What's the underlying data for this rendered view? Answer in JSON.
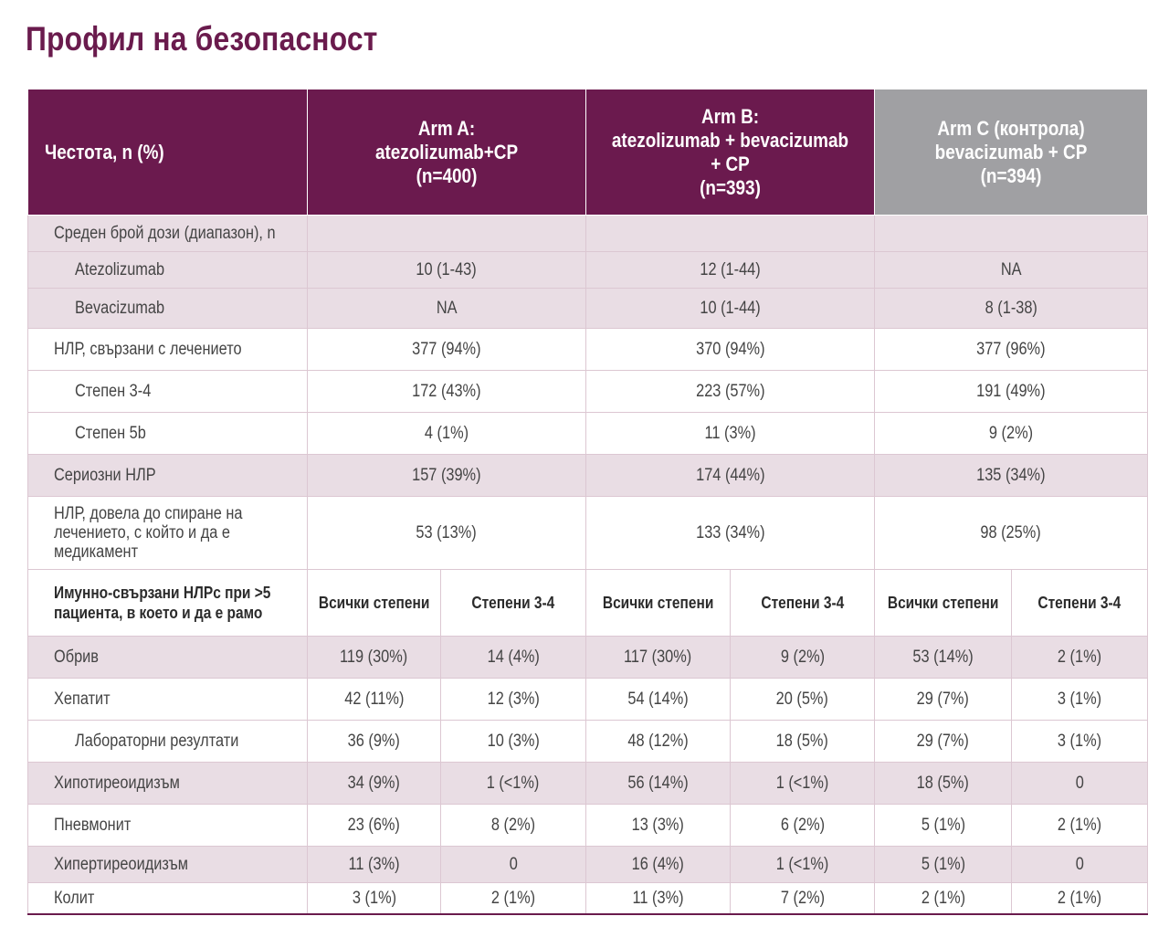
{
  "page_title": "Профил на безопасност",
  "header": {
    "label": "Честота, n (%)",
    "arms": [
      {
        "lines": [
          "Arm A:",
          "atezolizumab+CP",
          "(n=400)"
        ]
      },
      {
        "lines": [
          "Arm B:",
          "atezolizumab + bevacizumab",
          "+ CP",
          "(n=393)"
        ]
      },
      {
        "lines": [
          "Arm C (контрола)",
          "bevacizumab + CP",
          "(n=394)"
        ]
      }
    ]
  },
  "rows_top": [
    {
      "label": "Среден брой дози (диапазон), n",
      "indent": false,
      "shade": "pink",
      "a": "",
      "b": "",
      "c": ""
    },
    {
      "label": "Atezolizumab",
      "indent": true,
      "shade": "pink",
      "a": "10 (1-43)",
      "b": "12 (1-44)",
      "c": "NA"
    },
    {
      "label": "Bevacizumab",
      "indent": true,
      "shade": "pink",
      "a": "NA",
      "b": "10 (1-44)",
      "c": "8 (1-38)"
    },
    {
      "label": "НЛР, свързани с лечението",
      "indent": false,
      "shade": "white",
      "a": "377 (94%)",
      "b": "370 (94%)",
      "c": "377 (96%)"
    },
    {
      "label": "Степен 3-4",
      "indent": true,
      "shade": "white",
      "a": "172 (43%)",
      "b": "223 (57%)",
      "c": "191 (49%)"
    },
    {
      "label": "Степен 5b",
      "indent": true,
      "shade": "white",
      "a": "4 (1%)",
      "b": "11 (3%)",
      "c": "9 (2%)"
    },
    {
      "label": "Сериозни НЛР",
      "indent": false,
      "shade": "pink",
      "a": "157 (39%)",
      "b": "174 (44%)",
      "c": "135 (34%)"
    },
    {
      "label": "НЛР, довела до спиране на\nлечението, с който и да е\nмедикамент",
      "indent": false,
      "shade": "white",
      "a": "53 (13%)",
      "b": "133 (34%)",
      "c": "98 (25%)"
    }
  ],
  "subheader": {
    "label": "Имунно-свързани НЛРс при >5\nпациента, в което и да е рамо",
    "all_grades": "Всички степени",
    "grade34": "Степени 3-4"
  },
  "rows_immune": [
    {
      "label": "Обрив",
      "indent": false,
      "shade": "pink",
      "v": [
        "119 (30%)",
        "14 (4%)",
        "117 (30%)",
        "9 (2%)",
        "53 (14%)",
        "2 (1%)"
      ]
    },
    {
      "label": "Хепатит",
      "indent": false,
      "shade": "white",
      "v": [
        "42 (11%)",
        "12 (3%)",
        "54 (14%)",
        "20 (5%)",
        "29 (7%)",
        "3 (1%)"
      ]
    },
    {
      "label": "Лабораторни резултати",
      "indent": true,
      "shade": "white",
      "v": [
        "36 (9%)",
        "10 (3%)",
        "48 (12%)",
        "18 (5%)",
        "29 (7%)",
        "3 (1%)"
      ]
    },
    {
      "label": "Хипотиреоидизъм",
      "indent": false,
      "shade": "pink",
      "v": [
        "34 (9%)",
        "1 (<1%)",
        "56 (14%)",
        "1 (<1%)",
        "18 (5%)",
        "0"
      ]
    },
    {
      "label": "Пневмонит",
      "indent": false,
      "shade": "white",
      "v": [
        "23 (6%)",
        "8 (2%)",
        "13 (3%)",
        "6 (2%)",
        "5 (1%)",
        "2 (1%)"
      ]
    },
    {
      "label": "Хипертиреоидизъм",
      "indent": false,
      "shade": "pink",
      "v": [
        "11 (3%)",
        "0",
        "16 (4%)",
        "1 (<1%)",
        "5 (1%)",
        "0"
      ]
    },
    {
      "label": "Колит",
      "indent": false,
      "shade": "white",
      "v": [
        "3 (1%)",
        "2 (1%)",
        "11 (3%)",
        "7 (2%)",
        "2 (1%)",
        "2 (1%)"
      ]
    }
  ],
  "colors": {
    "brand": "#6b1a4e",
    "control_header": "#a0a0a3",
    "row_shade": "#e9dde4"
  }
}
